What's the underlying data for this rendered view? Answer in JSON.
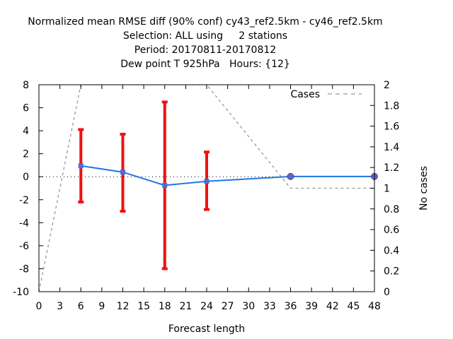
{
  "chart_data": {
    "type": "line",
    "title_lines": [
      "Normalized mean RMSE diff (90% conf) cy43_ref2.5km - cy46_ref2.5km",
      "Selection: ALL using     2 stations",
      "Period: 20170811-20170812",
      "Dew point T 925hPa   Hours: {12}"
    ],
    "xlabel": "Forecast length",
    "ylabel": "",
    "y2label": "No cases",
    "xlim": [
      0,
      48
    ],
    "ylim": [
      -10,
      8
    ],
    "y2lim": [
      0,
      2
    ],
    "xticks": [
      "0",
      "3",
      "6",
      "9",
      "12",
      "15",
      "18",
      "21",
      "24",
      "27",
      "30",
      "33",
      "36",
      "39",
      "42",
      "45",
      "48"
    ],
    "yticks": [
      "-10",
      "-8",
      "-6",
      "-4",
      "-2",
      "0",
      "2",
      "4",
      "6",
      "8"
    ],
    "y2ticks": [
      "0",
      "0.2",
      "0.4",
      "0.6",
      "0.8",
      "1",
      "1.2",
      "1.4",
      "1.6",
      "1.8",
      "2"
    ],
    "legend_placement": "top-right",
    "colors": {
      "line": "#1f78e0",
      "marker": "#4a6fd8",
      "errorbar": "#ee1111",
      "cases": "#999999"
    },
    "series": [
      {
        "kind": "mean_rmse_diff",
        "x": [
          6,
          12,
          18,
          24,
          36,
          48
        ],
        "y": [
          0.95,
          0.4,
          -0.75,
          -0.4,
          0.02,
          0.02
        ],
        "err_low": [
          -2.2,
          -3.0,
          -8.0,
          -2.85,
          null,
          null
        ],
        "err_high": [
          4.1,
          3.7,
          6.5,
          2.15,
          null,
          null
        ]
      },
      {
        "name": "Cases",
        "axis": "y2",
        "x": [
          0,
          6,
          12,
          18,
          24,
          36,
          48
        ],
        "y": [
          0,
          2,
          2,
          2,
          2,
          1,
          1
        ]
      }
    ]
  }
}
